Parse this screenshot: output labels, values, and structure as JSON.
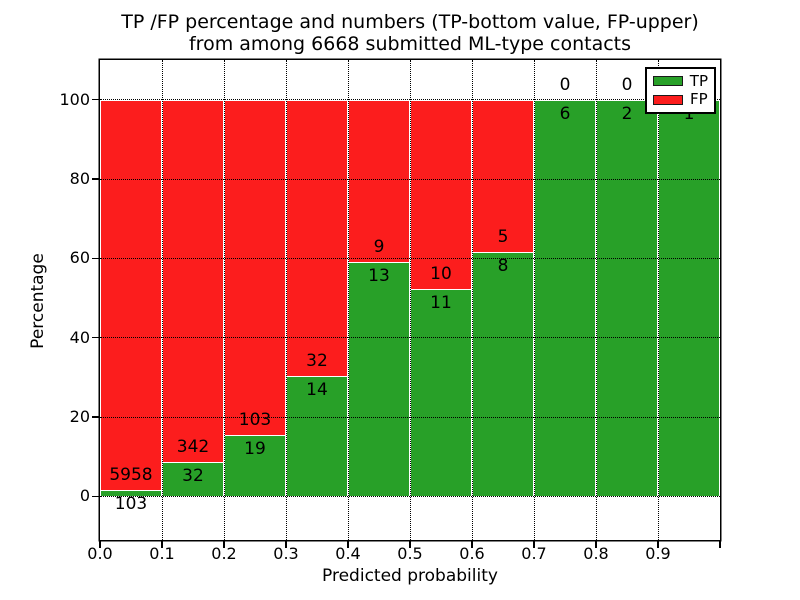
{
  "title": {
    "line1": "TP /FP percentage and numbers (TP-bottom value, FP-upper)",
    "line2": "from among 6668 submitted ML-type contacts"
  },
  "chart_data": {
    "type": "bar",
    "stacked": true,
    "normalized": "percent",
    "title": "TP /FP percentage and numbers (TP-bottom value, FP-upper)\nfrom among 6668 submitted ML-type contacts",
    "xlabel": "Predicted probability",
    "ylabel": "Percentage",
    "total_contacts": 6668,
    "bins": [
      "0.0-0.1",
      "0.1-0.2",
      "0.2-0.3",
      "0.3-0.4",
      "0.4-0.5",
      "0.5-0.6",
      "0.6-0.7",
      "0.7-0.8",
      "0.8-0.9",
      "0.9-1.0"
    ],
    "series": [
      {
        "name": "TP",
        "color": "#28a028",
        "values": [
          103,
          32,
          19,
          14,
          13,
          11,
          8,
          6,
          2,
          1
        ]
      },
      {
        "name": "FP",
        "color": "#fc1d1d",
        "values": [
          5958,
          342,
          103,
          32,
          9,
          10,
          5,
          0,
          0,
          0
        ]
      }
    ],
    "tp_percent_of_bin": [
      1.7,
      8.6,
      15.6,
      30.4,
      59.1,
      52.4,
      61.5,
      100.0,
      100.0,
      100.0
    ],
    "bar_label_note": "TP count printed below segment boundary, FP count printed above it",
    "xticks": [
      "0.0",
      "0.1",
      "0.2",
      "0.3",
      "0.4",
      "0.5",
      "0.6",
      "0.7",
      "0.8",
      "0.9"
    ],
    "yticks": [
      0,
      20,
      40,
      60,
      80,
      100
    ],
    "ytick_labels": [
      "0",
      "20",
      "40",
      "60",
      "80",
      "100"
    ],
    "xlim": [
      0.0,
      1.0
    ],
    "ylim": [
      -11,
      110
    ],
    "grid": "dotted",
    "legend_position": "upper right"
  },
  "legend": {
    "items": [
      {
        "label": "TP",
        "color": "#28a028"
      },
      {
        "label": "FP",
        "color": "#fc1d1d"
      }
    ]
  }
}
